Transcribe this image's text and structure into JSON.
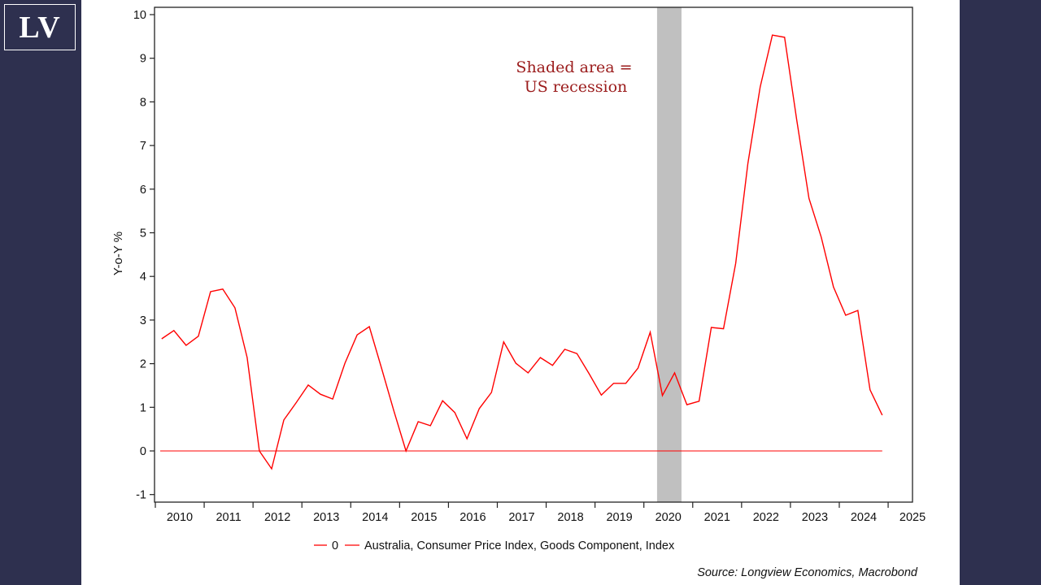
{
  "branding": {
    "logo_text": "LV",
    "panel_color": "#2e304f"
  },
  "chart_data": {
    "type": "line",
    "title": "",
    "xlabel": "",
    "ylabel": "Y-o-Y %",
    "ylim": [
      -1,
      10
    ],
    "xlim": [
      2009.95,
      2025.5
    ],
    "yticks": [
      -1,
      0,
      1,
      2,
      3,
      4,
      5,
      6,
      7,
      8,
      9,
      10
    ],
    "xticks": [
      2010,
      2011,
      2012,
      2013,
      2014,
      2015,
      2016,
      2017,
      2018,
      2019,
      2020,
      2021,
      2022,
      2023,
      2024,
      2025
    ],
    "grid": false,
    "legend_position": "bottom-center",
    "series": [
      {
        "name": "0",
        "color": "#ff0000",
        "x": [
          2010.1,
          2024.88
        ],
        "values": [
          0,
          0
        ]
      },
      {
        "name": "Australia, Consumer Price Index, Goods Component, Index",
        "color": "#ff0000",
        "x_start": 2010.13,
        "x_step": 0.25,
        "values": [
          2.57,
          2.76,
          2.42,
          2.63,
          3.65,
          3.71,
          3.28,
          2.14,
          0.0,
          -0.41,
          0.71,
          1.1,
          1.51,
          1.3,
          1.19,
          2.01,
          2.66,
          2.85,
          1.9,
          0.93,
          0.0,
          0.67,
          0.58,
          1.15,
          0.88,
          0.28,
          0.97,
          1.34,
          2.5,
          2.01,
          1.79,
          2.14,
          1.96,
          2.33,
          2.23,
          1.77,
          1.28,
          1.55,
          1.55,
          1.9,
          2.72,
          1.27,
          1.79,
          1.06,
          1.14,
          2.83,
          2.8,
          4.3,
          6.59,
          8.34,
          9.53,
          9.48,
          7.58,
          5.79,
          4.9,
          3.76,
          3.11,
          3.22,
          1.4,
          0.82
        ]
      }
    ],
    "shaded_regions": [
      {
        "label": "US recession",
        "x_from": 2020.27,
        "x_to": 2020.77,
        "color": "#c0c0c0"
      }
    ],
    "annotations": [
      {
        "lines": [
          "Shaded area =",
          "US recession"
        ],
        "color": "#9b1c1c"
      }
    ],
    "source": "Source: Longview Economics, Macrobond"
  }
}
